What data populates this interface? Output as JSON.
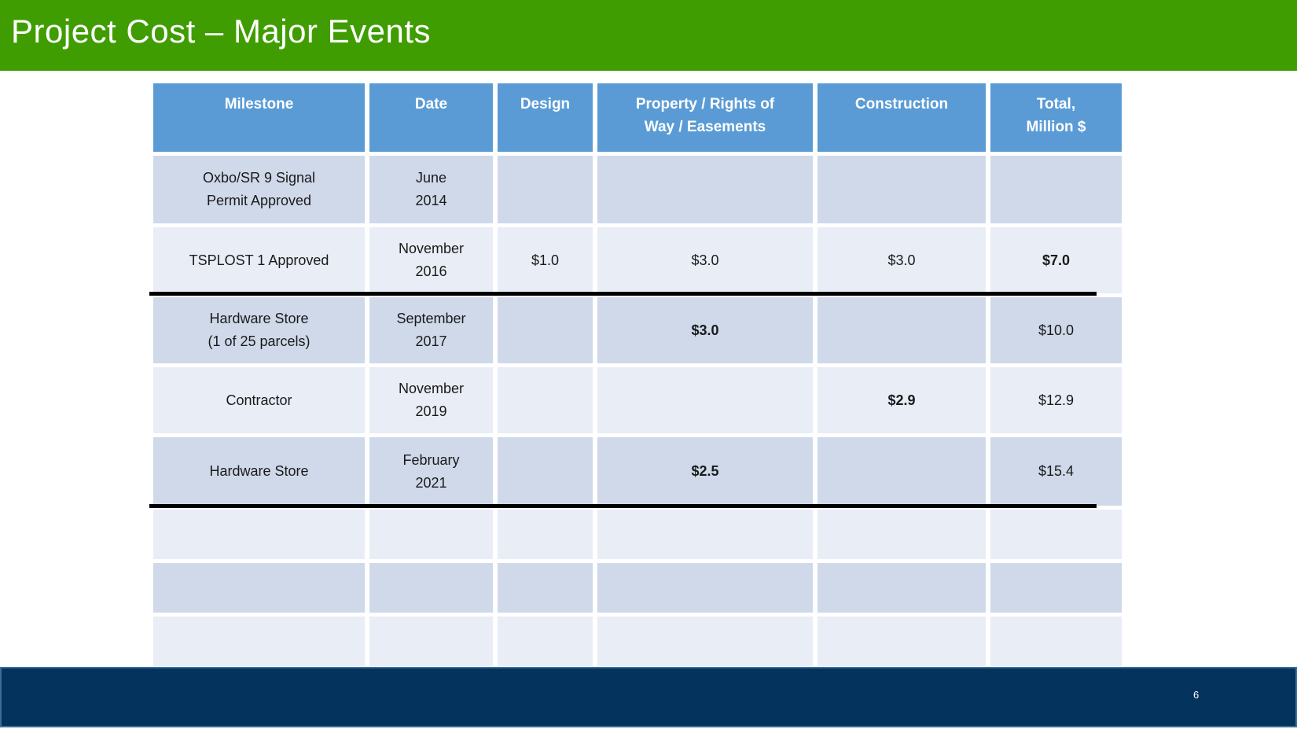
{
  "slide": {
    "title": "Project Cost – Major Events",
    "page_number": "6"
  },
  "colors": {
    "title_bar_green": "#3f9d01",
    "table_header_blue": "#5b9bd5",
    "row_band_dark": "#cfd9ea",
    "row_band_light": "#e9edf6",
    "section_divider": "#000000",
    "footer_navy": "#04335e",
    "footer_border_blue": "#3c6d96",
    "title_text": "#ffffff",
    "body_text": "#1a1a1a"
  },
  "table": {
    "headers": [
      "Milestone",
      "Date",
      "Design",
      "Property / Rights of\nWay / Easements",
      "Construction",
      "Total,\nMillion $"
    ],
    "rows": [
      {
        "cells": [
          "Oxbo/SR 9 Signal\nPermit Approved",
          "June\n2014",
          "",
          "",
          "",
          ""
        ]
      },
      {
        "cells": [
          "TSPLOST 1 Approved",
          "November\n2016",
          "$1.0",
          "$3.0",
          "$3.0",
          "$7.0"
        ]
      },
      {
        "cells": [
          "Hardware Store\n(1 of 25 parcels)",
          "September\n2017",
          "",
          "$3.0",
          "",
          "$10.0"
        ]
      },
      {
        "cells": [
          "Contractor",
          "November\n2019",
          "",
          "",
          "$2.9",
          "$12.9"
        ]
      },
      {
        "cells": [
          "Hardware Store",
          "February\n2021",
          "",
          "$2.5",
          "",
          "$15.4"
        ]
      },
      {
        "cells": [
          "",
          "",
          "",
          "",
          "",
          ""
        ]
      },
      {
        "cells": [
          "",
          "",
          "",
          "",
          "",
          ""
        ]
      },
      {
        "cells": [
          "",
          "",
          "",
          "",
          "",
          ""
        ]
      }
    ]
  }
}
